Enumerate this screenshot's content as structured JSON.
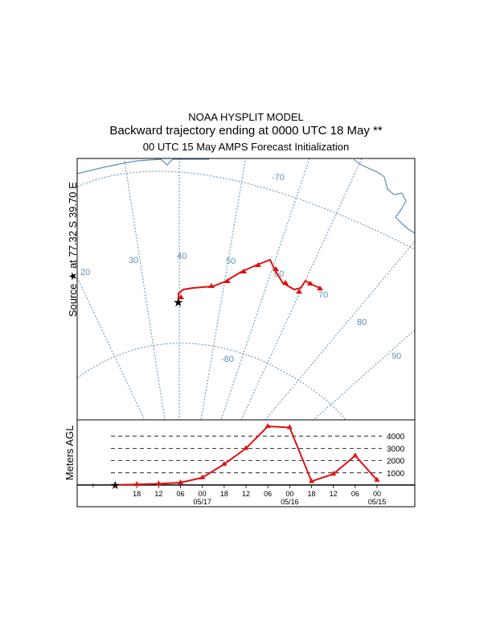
{
  "header": {
    "line1": "NOAA HYSPLIT MODEL",
    "line2": "Backward trajectory ending at 0000 UTC 18 May **",
    "line3": "00 UTC 15 May    AMPS  Forecast Initialization"
  },
  "map": {
    "side_label": "Source  ★  at   77.32 S   39.70 E",
    "lat_labels": [
      "-70",
      "-80"
    ],
    "lon_labels": [
      "20",
      "30",
      "40",
      "50",
      "60",
      "70",
      "80",
      "90"
    ],
    "grid_color": "#5b8fb9",
    "trajectory_color": "#e01010",
    "marker_icon": "star-icon"
  },
  "profile": {
    "ylabel": "Meters AGL",
    "height_levels": [
      "4000",
      "3000",
      "2000",
      "1000"
    ],
    "tick_labels": [
      "18",
      "12",
      "06",
      "00",
      "18",
      "12",
      "06",
      "00",
      "18",
      "12",
      "06",
      "00"
    ],
    "date_labels": [
      "05/17",
      "05/16",
      "05/15"
    ]
  },
  "chart_data": {
    "type": "line",
    "xlabel": "",
    "ylabel": "Meters AGL",
    "x": [
      "05/18 00",
      "05/17 18",
      "05/17 12",
      "05/17 06",
      "05/17 00",
      "05/16 18",
      "05/16 12",
      "05/16 06",
      "05/16 00",
      "05/15 18",
      "05/15 12",
      "05/15 06",
      "05/15 00"
    ],
    "series": [
      {
        "values": [
          0,
          50,
          100,
          200,
          600,
          1700,
          3000,
          4800,
          4700,
          300,
          900,
          2400,
          400
        ]
      }
    ],
    "ylim": [
      0,
      5000
    ]
  }
}
